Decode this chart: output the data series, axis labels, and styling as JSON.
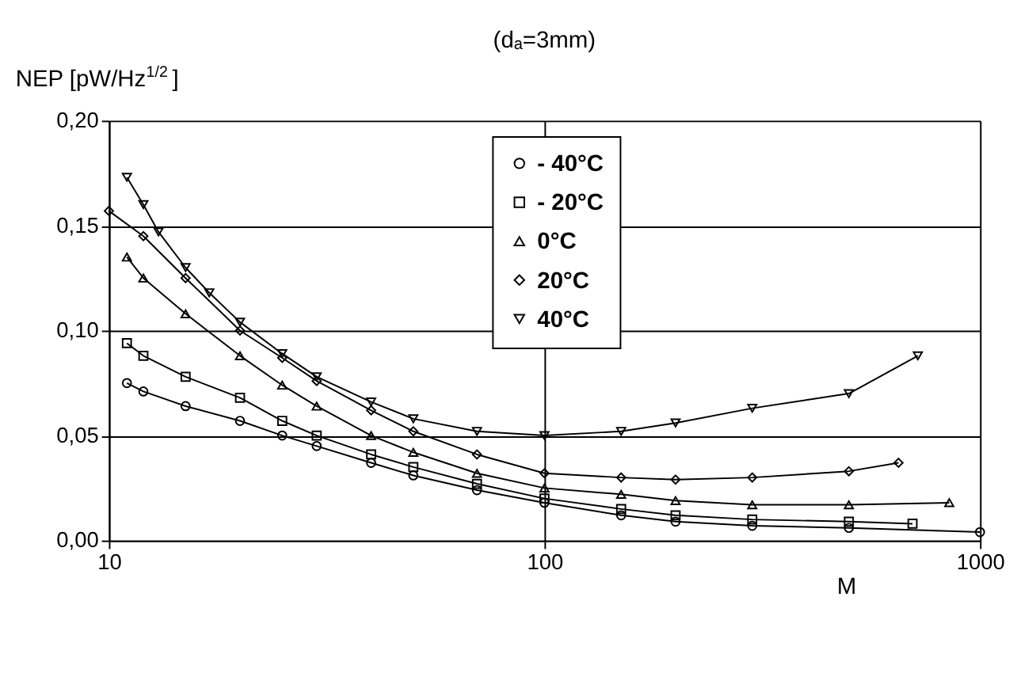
{
  "chart_data": {
    "type": "line",
    "title": "(dₐ=3mm)",
    "xlabel": "M",
    "ylabel": "NEP [pW/Hz$^{1/2}$]",
    "log": "x",
    "grid": true,
    "legend": "top",
    "line_style": "solid",
    "xlim": [
      10,
      1000
    ],
    "xticks": [
      10,
      100,
      1000
    ],
    "ylim": [
      0,
      0.2
    ],
    "yticks": [
      {
        "value": 0,
        "label": "0,00"
      },
      {
        "value": 0.05,
        "label": "0,05"
      },
      {
        "value": 0.1,
        "label": "0,10"
      },
      {
        "value": 0.15,
        "label": "0,15"
      },
      {
        "value": 0.2,
        "label": "0,20"
      }
    ],
    "series": [
      {
        "name": "- 40°C",
        "color": "#000000",
        "marker": "circle",
        "x": [
          11,
          12,
          15,
          20,
          25,
          30,
          40,
          50,
          70,
          100,
          150,
          200,
          300,
          500,
          1000
        ],
        "values": [
          0.075,
          0.071,
          0.064,
          0.057,
          0.05,
          0.045,
          0.037,
          0.031,
          0.024,
          0.018,
          0.012,
          0.009,
          0.007,
          0.006,
          0.004
        ]
      },
      {
        "name": "- 20°C",
        "color": "#000000",
        "marker": "square",
        "x": [
          11,
          12,
          15,
          20,
          25,
          30,
          40,
          50,
          70,
          100,
          150,
          200,
          300,
          500,
          700
        ],
        "values": [
          0.094,
          0.088,
          0.078,
          0.068,
          0.057,
          0.05,
          0.041,
          0.035,
          0.027,
          0.02,
          0.015,
          0.012,
          0.01,
          0.009,
          0.008
        ]
      },
      {
        "name": "0°C",
        "color": "#000000",
        "marker": "triangle",
        "x": [
          11,
          12,
          15,
          20,
          25,
          30,
          40,
          50,
          70,
          100,
          150,
          200,
          300,
          500,
          850
        ],
        "values": [
          0.135,
          0.125,
          0.108,
          0.088,
          0.074,
          0.064,
          0.05,
          0.042,
          0.032,
          0.025,
          0.022,
          0.019,
          0.017,
          0.017,
          0.018
        ]
      },
      {
        "name": "20°C",
        "color": "#000000",
        "marker": "diamond",
        "x": [
          10,
          12,
          15,
          20,
          25,
          30,
          40,
          50,
          70,
          100,
          150,
          200,
          300,
          500,
          650
        ],
        "values": [
          0.157,
          0.145,
          0.125,
          0.1,
          0.087,
          0.076,
          0.062,
          0.052,
          0.041,
          0.032,
          0.03,
          0.029,
          0.03,
          0.033,
          0.037
        ]
      },
      {
        "name": "40°C",
        "color": "#000000",
        "marker": "triangle-down",
        "x": [
          11,
          12,
          13,
          15,
          17,
          20,
          25,
          30,
          40,
          50,
          70,
          100,
          150,
          200,
          300,
          500,
          720
        ],
        "values": [
          0.173,
          0.16,
          0.147,
          0.13,
          0.118,
          0.104,
          0.089,
          0.078,
          0.066,
          0.058,
          0.052,
          0.05,
          0.052,
          0.056,
          0.063,
          0.07,
          0.088
        ]
      }
    ]
  }
}
